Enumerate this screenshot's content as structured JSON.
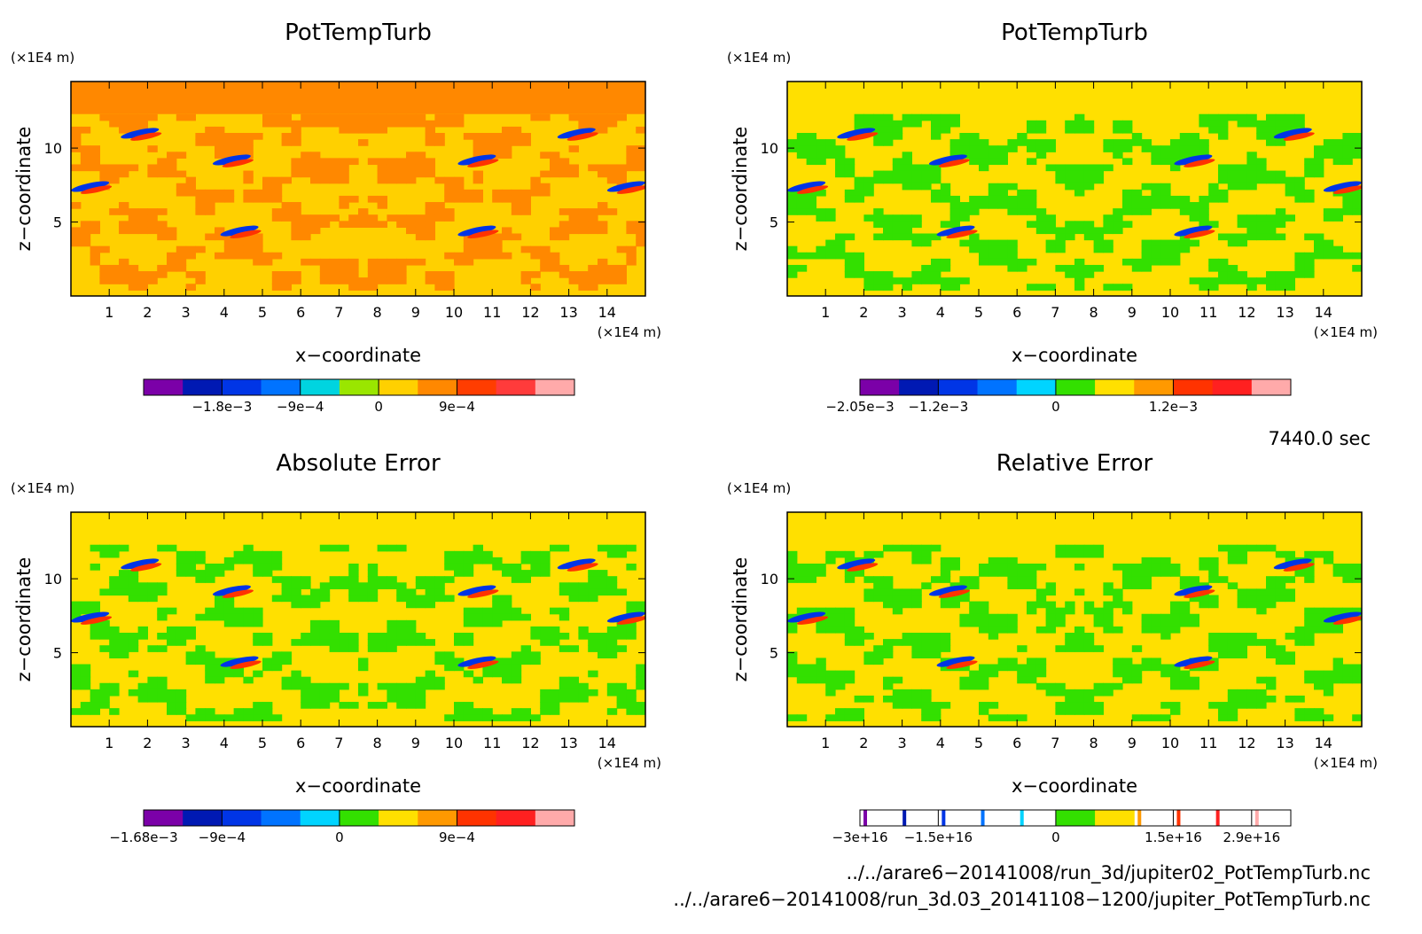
{
  "chart_data": [
    {
      "type": "heatmap",
      "title": "PotTempTurb",
      "xlabel": "x−coordinate",
      "ylabel": "z−coordinate",
      "x_unit": "(×1E4 m)",
      "y_unit": "(×1E4 m)",
      "xlim": [
        0,
        15
      ],
      "ylim": [
        0,
        14.5
      ],
      "x_ticks": [
        "1",
        "2",
        "3",
        "4",
        "5",
        "6",
        "7",
        "8",
        "9",
        "10",
        "11",
        "12",
        "13",
        "14"
      ],
      "y_ticks": [
        "5",
        "10"
      ],
      "colorbar": {
        "colors": [
          "#7b00a8",
          "#0019b3",
          "#0035e6",
          "#0073ff",
          "#00d4e0",
          "#9ae600",
          "#ffd000",
          "#ff8800",
          "#ff3d00",
          "#ff3b3b",
          "#ffaaaa"
        ],
        "tick_labels": [
          {
            "label": "−1.8e−3",
            "index": 2
          },
          {
            "label": "−9e−4",
            "index": 4
          },
          {
            "label": "0",
            "index": 6
          },
          {
            "label": "9e−4",
            "index": 8
          }
        ],
        "outline_only": false
      },
      "palette": [
        "#ffd000",
        "#ff8800"
      ],
      "background_top": "#ff8800"
    },
    {
      "type": "heatmap",
      "title": "PotTempTurb",
      "xlabel": "x−coordinate",
      "ylabel": "z−coordinate",
      "x_unit": "(×1E4 m)",
      "y_unit": "(×1E4 m)",
      "xlim": [
        0,
        15
      ],
      "ylim": [
        0,
        14.5
      ],
      "x_ticks": [
        "1",
        "2",
        "3",
        "4",
        "5",
        "6",
        "7",
        "8",
        "9",
        "10",
        "11",
        "12",
        "13",
        "14"
      ],
      "y_ticks": [
        "5",
        "10"
      ],
      "colorbar": {
        "colors": [
          "#7b00a8",
          "#0019b3",
          "#0035e6",
          "#0073ff",
          "#00d4ff",
          "#33e000",
          "#ffe000",
          "#ff9900",
          "#ff3300",
          "#ff2020",
          "#ffaaaa"
        ],
        "tick_labels": [
          {
            "label": "−2.05e−3",
            "index": 0
          },
          {
            "label": "−1.2e−3",
            "index": 2
          },
          {
            "label": "0",
            "index": 5
          },
          {
            "label": "1.2e−3",
            "index": 8
          }
        ],
        "outline_only": false
      },
      "palette": [
        "#ffe000",
        "#33e000"
      ],
      "background_top": "#ffe000"
    },
    {
      "type": "heatmap",
      "title": "Absolute Error",
      "xlabel": "x−coordinate",
      "ylabel": "z−coordinate",
      "x_unit": "(×1E4 m)",
      "y_unit": "(×1E4 m)",
      "xlim": [
        0,
        15
      ],
      "ylim": [
        0,
        14.5
      ],
      "x_ticks": [
        "1",
        "2",
        "3",
        "4",
        "5",
        "6",
        "7",
        "8",
        "9",
        "10",
        "11",
        "12",
        "13",
        "14"
      ],
      "y_ticks": [
        "5",
        "10"
      ],
      "colorbar": {
        "colors": [
          "#7b00a8",
          "#0019b3",
          "#0035e6",
          "#0073ff",
          "#00d4ff",
          "#33e000",
          "#ffe000",
          "#ff9900",
          "#ff3300",
          "#ff2020",
          "#ffaaaa"
        ],
        "tick_labels": [
          {
            "label": "−1.68e−3",
            "index": 0
          },
          {
            "label": "−9e−4",
            "index": 2
          },
          {
            "label": "0",
            "index": 5
          },
          {
            "label": "9e−4",
            "index": 8
          }
        ],
        "outline_only": false
      },
      "palette": [
        "#ffe000",
        "#33e000"
      ],
      "background_top": "#ffe000"
    },
    {
      "type": "heatmap",
      "title": "Relative Error",
      "xlabel": "x−coordinate",
      "ylabel": "z−coordinate",
      "x_unit": "(×1E4 m)",
      "y_unit": "(×1E4 m)",
      "xlim": [
        0,
        15
      ],
      "ylim": [
        0,
        14.5
      ],
      "x_ticks": [
        "1",
        "2",
        "3",
        "4",
        "5",
        "6",
        "7",
        "8",
        "9",
        "10",
        "11",
        "12",
        "13",
        "14"
      ],
      "y_ticks": [
        "5",
        "10"
      ],
      "colorbar": {
        "colors": [
          "#7b00a8",
          "#0019b3",
          "#0035e6",
          "#0073ff",
          "#00d4ff",
          "#33e000",
          "#ffe000",
          "#ff9900",
          "#ff3300",
          "#ff2020",
          "#ffaaaa"
        ],
        "tick_labels": [
          {
            "label": "−3e+16",
            "index": 0
          },
          {
            "label": "−1.5e+16",
            "index": 2
          },
          {
            "label": "0",
            "index": 5
          },
          {
            "label": "1.5e+16",
            "index": 8
          },
          {
            "label": "2.9e+16",
            "index": 10
          }
        ],
        "outline_only": true
      },
      "palette": [
        "#ffe000",
        "#33e000"
      ],
      "background_top": "#ffe000"
    }
  ],
  "time_label": "7440.0 sec",
  "file_paths": [
    "../../arare6−20141008/run_3d/jupiter02_PotTempTurb.nc",
    "../../arare6−20141008/run_3d.03_20141108−1200/jupiter_PotTempTurb.nc"
  ]
}
